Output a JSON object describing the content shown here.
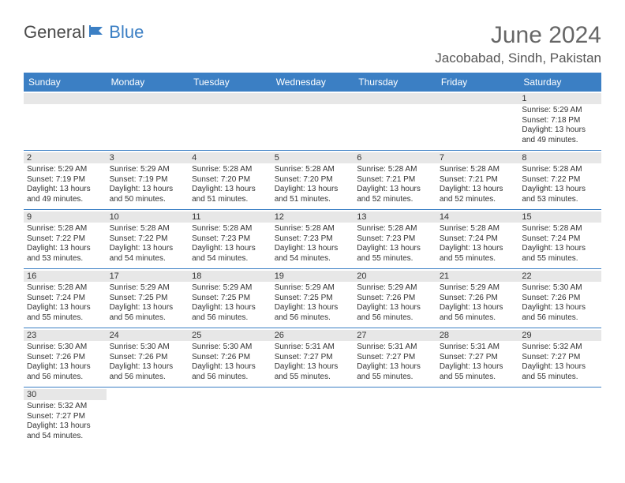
{
  "logo": {
    "general": "General",
    "blue": "Blue"
  },
  "header": {
    "month_title": "June 2024",
    "location": "Jacobabad, Sindh, Pakistan"
  },
  "style": {
    "header_bg": "#3b7fc4",
    "header_text": "#ffffff",
    "daynum_bg": "#e7e7e7",
    "rule_color": "#3b7fc4",
    "logo_blue": "#3b7fc4",
    "logo_gray": "#4a4a4a"
  },
  "days_of_week": [
    "Sunday",
    "Monday",
    "Tuesday",
    "Wednesday",
    "Thursday",
    "Friday",
    "Saturday"
  ],
  "weeks": [
    [
      null,
      null,
      null,
      null,
      null,
      null,
      {
        "n": "1",
        "sunrise": "Sunrise: 5:29 AM",
        "sunset": "Sunset: 7:18 PM",
        "daylight": "Daylight: 13 hours and 49 minutes."
      }
    ],
    [
      {
        "n": "2",
        "sunrise": "Sunrise: 5:29 AM",
        "sunset": "Sunset: 7:19 PM",
        "daylight": "Daylight: 13 hours and 49 minutes."
      },
      {
        "n": "3",
        "sunrise": "Sunrise: 5:29 AM",
        "sunset": "Sunset: 7:19 PM",
        "daylight": "Daylight: 13 hours and 50 minutes."
      },
      {
        "n": "4",
        "sunrise": "Sunrise: 5:28 AM",
        "sunset": "Sunset: 7:20 PM",
        "daylight": "Daylight: 13 hours and 51 minutes."
      },
      {
        "n": "5",
        "sunrise": "Sunrise: 5:28 AM",
        "sunset": "Sunset: 7:20 PM",
        "daylight": "Daylight: 13 hours and 51 minutes."
      },
      {
        "n": "6",
        "sunrise": "Sunrise: 5:28 AM",
        "sunset": "Sunset: 7:21 PM",
        "daylight": "Daylight: 13 hours and 52 minutes."
      },
      {
        "n": "7",
        "sunrise": "Sunrise: 5:28 AM",
        "sunset": "Sunset: 7:21 PM",
        "daylight": "Daylight: 13 hours and 52 minutes."
      },
      {
        "n": "8",
        "sunrise": "Sunrise: 5:28 AM",
        "sunset": "Sunset: 7:22 PM",
        "daylight": "Daylight: 13 hours and 53 minutes."
      }
    ],
    [
      {
        "n": "9",
        "sunrise": "Sunrise: 5:28 AM",
        "sunset": "Sunset: 7:22 PM",
        "daylight": "Daylight: 13 hours and 53 minutes."
      },
      {
        "n": "10",
        "sunrise": "Sunrise: 5:28 AM",
        "sunset": "Sunset: 7:22 PM",
        "daylight": "Daylight: 13 hours and 54 minutes."
      },
      {
        "n": "11",
        "sunrise": "Sunrise: 5:28 AM",
        "sunset": "Sunset: 7:23 PM",
        "daylight": "Daylight: 13 hours and 54 minutes."
      },
      {
        "n": "12",
        "sunrise": "Sunrise: 5:28 AM",
        "sunset": "Sunset: 7:23 PM",
        "daylight": "Daylight: 13 hours and 54 minutes."
      },
      {
        "n": "13",
        "sunrise": "Sunrise: 5:28 AM",
        "sunset": "Sunset: 7:23 PM",
        "daylight": "Daylight: 13 hours and 55 minutes."
      },
      {
        "n": "14",
        "sunrise": "Sunrise: 5:28 AM",
        "sunset": "Sunset: 7:24 PM",
        "daylight": "Daylight: 13 hours and 55 minutes."
      },
      {
        "n": "15",
        "sunrise": "Sunrise: 5:28 AM",
        "sunset": "Sunset: 7:24 PM",
        "daylight": "Daylight: 13 hours and 55 minutes."
      }
    ],
    [
      {
        "n": "16",
        "sunrise": "Sunrise: 5:28 AM",
        "sunset": "Sunset: 7:24 PM",
        "daylight": "Daylight: 13 hours and 55 minutes."
      },
      {
        "n": "17",
        "sunrise": "Sunrise: 5:29 AM",
        "sunset": "Sunset: 7:25 PM",
        "daylight": "Daylight: 13 hours and 56 minutes."
      },
      {
        "n": "18",
        "sunrise": "Sunrise: 5:29 AM",
        "sunset": "Sunset: 7:25 PM",
        "daylight": "Daylight: 13 hours and 56 minutes."
      },
      {
        "n": "19",
        "sunrise": "Sunrise: 5:29 AM",
        "sunset": "Sunset: 7:25 PM",
        "daylight": "Daylight: 13 hours and 56 minutes."
      },
      {
        "n": "20",
        "sunrise": "Sunrise: 5:29 AM",
        "sunset": "Sunset: 7:26 PM",
        "daylight": "Daylight: 13 hours and 56 minutes."
      },
      {
        "n": "21",
        "sunrise": "Sunrise: 5:29 AM",
        "sunset": "Sunset: 7:26 PM",
        "daylight": "Daylight: 13 hours and 56 minutes."
      },
      {
        "n": "22",
        "sunrise": "Sunrise: 5:30 AM",
        "sunset": "Sunset: 7:26 PM",
        "daylight": "Daylight: 13 hours and 56 minutes."
      }
    ],
    [
      {
        "n": "23",
        "sunrise": "Sunrise: 5:30 AM",
        "sunset": "Sunset: 7:26 PM",
        "daylight": "Daylight: 13 hours and 56 minutes."
      },
      {
        "n": "24",
        "sunrise": "Sunrise: 5:30 AM",
        "sunset": "Sunset: 7:26 PM",
        "daylight": "Daylight: 13 hours and 56 minutes."
      },
      {
        "n": "25",
        "sunrise": "Sunrise: 5:30 AM",
        "sunset": "Sunset: 7:26 PM",
        "daylight": "Daylight: 13 hours and 56 minutes."
      },
      {
        "n": "26",
        "sunrise": "Sunrise: 5:31 AM",
        "sunset": "Sunset: 7:27 PM",
        "daylight": "Daylight: 13 hours and 55 minutes."
      },
      {
        "n": "27",
        "sunrise": "Sunrise: 5:31 AM",
        "sunset": "Sunset: 7:27 PM",
        "daylight": "Daylight: 13 hours and 55 minutes."
      },
      {
        "n": "28",
        "sunrise": "Sunrise: 5:31 AM",
        "sunset": "Sunset: 7:27 PM",
        "daylight": "Daylight: 13 hours and 55 minutes."
      },
      {
        "n": "29",
        "sunrise": "Sunrise: 5:32 AM",
        "sunset": "Sunset: 7:27 PM",
        "daylight": "Daylight: 13 hours and 55 minutes."
      }
    ],
    [
      {
        "n": "30",
        "sunrise": "Sunrise: 5:32 AM",
        "sunset": "Sunset: 7:27 PM",
        "daylight": "Daylight: 13 hours and 54 minutes."
      },
      null,
      null,
      null,
      null,
      null,
      null
    ]
  ]
}
